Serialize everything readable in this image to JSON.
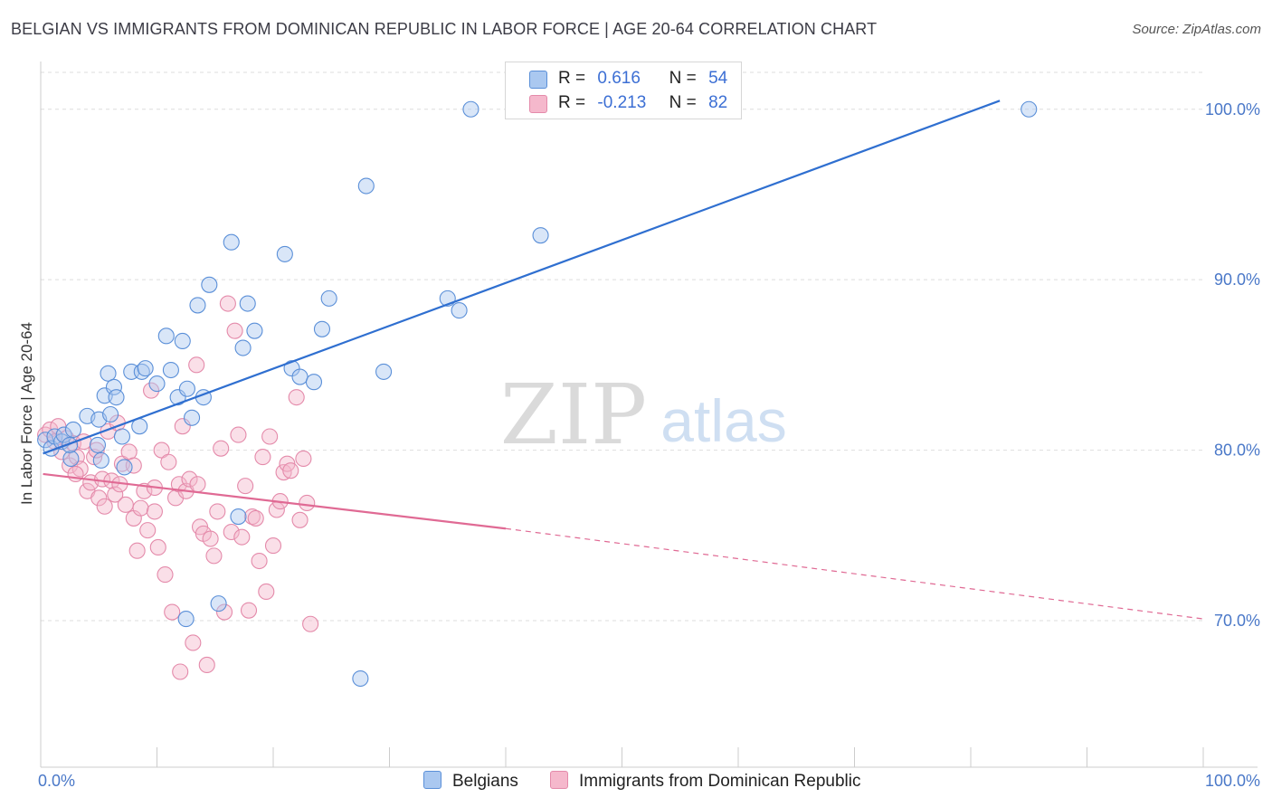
{
  "title": "BELGIAN VS IMMIGRANTS FROM DOMINICAN REPUBLIC IN LABOR FORCE | AGE 20-64 CORRELATION CHART",
  "source": "Source: ZipAtlas.com",
  "watermark": {
    "zip": "ZIP",
    "atlas": "atlas"
  },
  "legend_top": {
    "r_label": "R =",
    "n_label": "N =",
    "rows": [
      {
        "r": "0.616",
        "n": "54",
        "color": "#aac8f0"
      },
      {
        "r": "-0.213",
        "n": "82",
        "color": "#f5b8cc"
      }
    ]
  },
  "legend_bottom": [
    {
      "label": "Belgians",
      "color": "#aac8f0"
    },
    {
      "label": "Immigrants from Dominican Republic",
      "color": "#f5b8cc"
    }
  ],
  "chart_data": {
    "type": "scatter",
    "title": "BELGIAN VS IMMIGRANTS FROM DOMINICAN REPUBLIC IN LABOR FORCE | AGE 20-64 CORRELATION CHART",
    "xlabel": "",
    "ylabel": "In Labor Force | Age 20-64",
    "xlim": [
      0,
      100
    ],
    "ylim": [
      60.4,
      101.8
    ],
    "x_tick_labels": [
      {
        "value": 0,
        "label": "0.0%"
      },
      {
        "value": 100,
        "label": "100.0%"
      }
    ],
    "y_ticks": [
      {
        "value": 99.0,
        "label": "100.0%"
      },
      {
        "value": 89.0,
        "label": "90.0%"
      },
      {
        "value": 79.0,
        "label": "80.0%"
      },
      {
        "value": 69.0,
        "label": "70.0%"
      }
    ],
    "grid": true,
    "legend_position": "top-center",
    "colors": {
      "belgians_fill": "#aac8f0",
      "belgians_stroke": "#5a8fd8",
      "belgians_line": "#2f6fd0",
      "dominican_fill": "#f5b8cc",
      "dominican_stroke": "#e48aaa",
      "dominican_line": "#e06a94"
    },
    "series": [
      {
        "name": "Belgians",
        "points": [
          [
            0.4,
            79.6
          ],
          [
            0.9,
            79.1
          ],
          [
            1.2,
            79.8
          ],
          [
            1.8,
            79.5
          ],
          [
            2.0,
            79.9
          ],
          [
            2.6,
            78.5
          ],
          [
            2.8,
            80.2
          ],
          [
            2.5,
            79.3
          ],
          [
            4.0,
            81.0
          ],
          [
            4.9,
            79.3
          ],
          [
            5.2,
            78.4
          ],
          [
            5.5,
            82.2
          ],
          [
            5.8,
            83.5
          ],
          [
            5.0,
            80.8
          ],
          [
            6.0,
            81.1
          ],
          [
            6.3,
            82.7
          ],
          [
            6.5,
            82.1
          ],
          [
            7.0,
            79.8
          ],
          [
            7.2,
            78.0
          ],
          [
            7.8,
            83.6
          ],
          [
            8.5,
            80.4
          ],
          [
            8.7,
            83.6
          ],
          [
            9.0,
            83.8
          ],
          [
            10.0,
            82.9
          ],
          [
            10.8,
            85.7
          ],
          [
            11.2,
            83.7
          ],
          [
            11.8,
            82.1
          ],
          [
            12.2,
            85.4
          ],
          [
            12.6,
            82.6
          ],
          [
            13.0,
            80.9
          ],
          [
            13.5,
            87.5
          ],
          [
            14.0,
            82.1
          ],
          [
            14.5,
            88.7
          ],
          [
            15.3,
            70.0
          ],
          [
            16.4,
            91.2
          ],
          [
            17.0,
            75.1
          ],
          [
            17.4,
            85.0
          ],
          [
            17.8,
            87.6
          ],
          [
            18.4,
            86.0
          ],
          [
            21.0,
            90.5
          ],
          [
            21.6,
            83.8
          ],
          [
            22.3,
            83.3
          ],
          [
            23.5,
            83.0
          ],
          [
            24.2,
            86.1
          ],
          [
            24.8,
            87.9
          ],
          [
            28.0,
            94.5
          ],
          [
            29.5,
            83.6
          ],
          [
            35.0,
            87.9
          ],
          [
            36.0,
            87.2
          ],
          [
            37.0,
            99.0
          ],
          [
            43.0,
            91.6
          ],
          [
            85.0,
            99.0
          ],
          [
            12.5,
            69.1
          ],
          [
            27.5,
            65.6
          ]
        ],
        "trend": {
          "x0": 0.2,
          "y0": 78.8,
          "x1": 82.5,
          "y1": 99.5
        }
      },
      {
        "name": "Immigrants from Dominican Republic",
        "points": [
          [
            0.4,
            79.9
          ],
          [
            0.8,
            80.2
          ],
          [
            1.2,
            79.5
          ],
          [
            1.5,
            80.4
          ],
          [
            1.8,
            78.9
          ],
          [
            2.2,
            79.7
          ],
          [
            2.5,
            78.1
          ],
          [
            2.8,
            79.4
          ],
          [
            3.1,
            78.6
          ],
          [
            3.4,
            77.9
          ],
          [
            3.7,
            79.5
          ],
          [
            4.0,
            76.6
          ],
          [
            4.3,
            77.1
          ],
          [
            4.6,
            78.6
          ],
          [
            5.0,
            76.2
          ],
          [
            5.3,
            77.3
          ],
          [
            5.5,
            75.7
          ],
          [
            5.8,
            80.1
          ],
          [
            6.1,
            77.2
          ],
          [
            6.4,
            76.4
          ],
          [
            6.8,
            77.0
          ],
          [
            7.0,
            78.2
          ],
          [
            7.3,
            75.8
          ],
          [
            7.6,
            78.9
          ],
          [
            8.0,
            75.0
          ],
          [
            8.3,
            73.1
          ],
          [
            8.6,
            75.6
          ],
          [
            8.9,
            76.6
          ],
          [
            9.2,
            74.3
          ],
          [
            9.5,
            82.5
          ],
          [
            9.8,
            75.4
          ],
          [
            10.1,
            73.3
          ],
          [
            10.4,
            79.0
          ],
          [
            10.7,
            71.7
          ],
          [
            11.0,
            78.3
          ],
          [
            11.3,
            69.5
          ],
          [
            11.6,
            76.2
          ],
          [
            11.9,
            77.0
          ],
          [
            12.2,
            80.4
          ],
          [
            12.5,
            76.6
          ],
          [
            12.8,
            77.3
          ],
          [
            13.1,
            67.7
          ],
          [
            13.4,
            84.0
          ],
          [
            13.7,
            74.5
          ],
          [
            14.0,
            74.1
          ],
          [
            14.3,
            66.4
          ],
          [
            14.6,
            73.8
          ],
          [
            14.9,
            72.8
          ],
          [
            15.2,
            75.4
          ],
          [
            15.5,
            79.1
          ],
          [
            15.8,
            69.5
          ],
          [
            16.1,
            87.6
          ],
          [
            16.4,
            74.2
          ],
          [
            16.7,
            86.0
          ],
          [
            17.0,
            79.9
          ],
          [
            17.3,
            73.9
          ],
          [
            17.6,
            76.9
          ],
          [
            17.9,
            69.6
          ],
          [
            18.2,
            75.1
          ],
          [
            18.5,
            75.0
          ],
          [
            18.8,
            72.5
          ],
          [
            19.1,
            78.6
          ],
          [
            19.4,
            70.7
          ],
          [
            19.7,
            79.8
          ],
          [
            20.0,
            73.4
          ],
          [
            20.3,
            75.5
          ],
          [
            20.6,
            76.0
          ],
          [
            20.9,
            77.7
          ],
          [
            21.2,
            78.2
          ],
          [
            21.5,
            77.8
          ],
          [
            22.0,
            82.1
          ],
          [
            22.3,
            74.9
          ],
          [
            22.6,
            78.5
          ],
          [
            22.9,
            75.9
          ],
          [
            23.2,
            68.8
          ],
          [
            12.0,
            66.0
          ],
          [
            8.0,
            78.1
          ],
          [
            3.0,
            77.6
          ],
          [
            6.6,
            80.6
          ],
          [
            9.8,
            76.8
          ],
          [
            4.8,
            79.0
          ],
          [
            13.5,
            77.0
          ]
        ],
        "trend_solid": {
          "x0": 0.2,
          "y0": 77.6,
          "x1": 40.0,
          "y1": 74.4
        },
        "trend_dashed": {
          "x0": 40.0,
          "y0": 74.4,
          "x1": 100.0,
          "y1": 69.1
        }
      }
    ]
  }
}
